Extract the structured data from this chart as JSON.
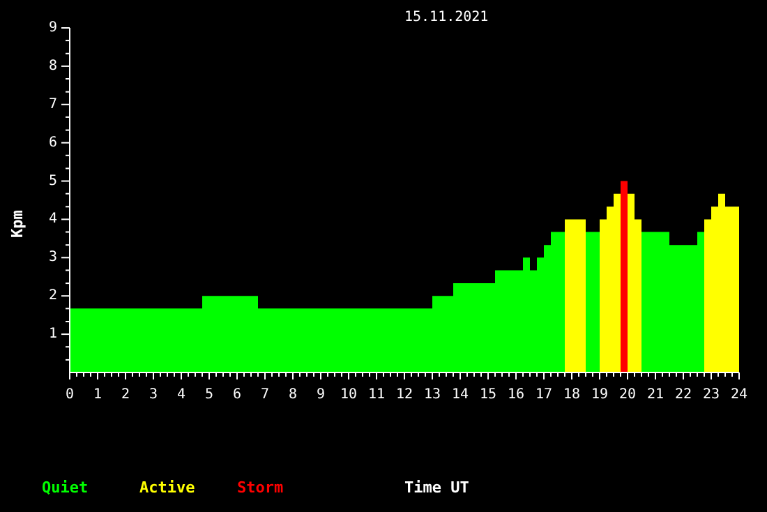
{
  "chart_data": {
    "type": "histogram",
    "title": "15.11.2021",
    "xlabel": "Time UT",
    "ylabel": "Kpm",
    "bins": [
      0,
      4.75,
      6.75,
      13,
      13.75,
      15.25,
      16.25,
      16.5,
      16.75,
      17,
      17.25,
      17.75,
      18.5,
      19,
      19.25,
      19.5,
      19.75,
      20,
      20.25,
      20.5,
      21.5,
      22.5,
      22.75,
      23,
      23.25,
      23.5,
      24
    ],
    "series": [
      {
        "name": "Quiet",
        "color": "#00ff00",
        "values": [
          1.67,
          2,
          1.67,
          2,
          2.33,
          2.67,
          3,
          2.67,
          3,
          3.33,
          3.67,
          null,
          3.67,
          null,
          null,
          null,
          null,
          null,
          null,
          3.67,
          3.33,
          3.67,
          null,
          null,
          null,
          null
        ]
      },
      {
        "name": "Active",
        "color": "#ffff00",
        "values": [
          null,
          null,
          null,
          null,
          null,
          null,
          null,
          null,
          null,
          null,
          null,
          4,
          null,
          4,
          4.33,
          4.67,
          null,
          4.67,
          4,
          null,
          null,
          null,
          4,
          4.33,
          4.67,
          4.33
        ]
      },
      {
        "name": "Storm",
        "color": "#ff0000",
        "values": [
          null,
          null,
          null,
          null,
          null,
          null,
          null,
          null,
          null,
          null,
          null,
          null,
          null,
          null,
          null,
          null,
          5,
          null,
          null,
          null,
          null,
          null,
          null,
          null,
          null,
          null
        ]
      }
    ],
    "xlim": [
      0,
      24
    ],
    "ylim": [
      0,
      9
    ],
    "xticks": [
      0,
      {
        "value": 0.25,
        "label": null
      },
      {
        "value": 0.5,
        "label": null
      },
      {
        "value": 0.75,
        "label": null
      },
      1,
      {
        "value": 1.25,
        "label": null
      },
      {
        "value": 1.5,
        "label": null
      },
      {
        "value": 1.75,
        "label": null
      },
      2,
      {
        "value": 2.25,
        "label": null
      },
      {
        "value": 2.5,
        "label": null
      },
      {
        "value": 2.75,
        "label": null
      },
      3,
      {
        "value": 3.25,
        "label": null
      },
      {
        "value": 3.5,
        "label": null
      },
      {
        "value": 3.75,
        "label": null
      },
      4,
      {
        "value": 4.25,
        "label": null
      },
      {
        "value": 4.5,
        "label": null
      },
      {
        "value": 4.75,
        "label": null
      },
      5,
      {
        "value": 5.25,
        "label": null
      },
      {
        "value": 5.5,
        "label": null
      },
      {
        "value": 5.75,
        "label": null
      },
      6,
      {
        "value": 6.25,
        "label": null
      },
      {
        "value": 6.5,
        "label": null
      },
      {
        "value": 6.75,
        "label": null
      },
      7,
      {
        "value": 7.25,
        "label": null
      },
      {
        "value": 7.5,
        "label": null
      },
      {
        "value": 7.75,
        "label": null
      },
      8,
      {
        "value": 8.25,
        "label": null
      },
      {
        "value": 8.5,
        "label": null
      },
      {
        "value": 8.75,
        "label": null
      },
      9,
      {
        "value": 9.25,
        "label": null
      },
      {
        "value": 9.5,
        "label": null
      },
      {
        "value": 9.75,
        "label": null
      },
      10,
      {
        "value": 10.25,
        "label": null
      },
      {
        "value": 10.5,
        "label": null
      },
      {
        "value": 10.75,
        "label": null
      },
      11,
      {
        "value": 11.25,
        "label": null
      },
      {
        "value": 11.5,
        "label": null
      },
      {
        "value": 11.75,
        "label": null
      },
      12,
      {
        "value": 12.25,
        "label": null
      },
      {
        "value": 12.5,
        "label": null
      },
      {
        "value": 12.75,
        "label": null
      },
      13,
      {
        "value": 13.25,
        "label": null
      },
      {
        "value": 13.5,
        "label": null
      },
      {
        "value": 13.75,
        "label": null
      },
      14,
      {
        "value": 14.25,
        "label": null
      },
      {
        "value": 14.5,
        "label": null
      },
      {
        "value": 14.75,
        "label": null
      },
      15,
      {
        "value": 15.25,
        "label": null
      },
      {
        "value": 15.5,
        "label": null
      },
      {
        "value": 15.75,
        "label": null
      },
      16,
      {
        "value": 16.25,
        "label": null
      },
      {
        "value": 16.5,
        "label": null
      },
      {
        "value": 16.75,
        "label": null
      },
      17,
      {
        "value": 17.25,
        "label": null
      },
      {
        "value": 17.5,
        "label": null
      },
      {
        "value": 17.75,
        "label": null
      },
      18,
      {
        "value": 18.25,
        "label": null
      },
      {
        "value": 18.5,
        "label": null
      },
      {
        "value": 18.75,
        "label": null
      },
      19,
      {
        "value": 19.25,
        "label": null
      },
      {
        "value": 19.5,
        "label": null
      },
      {
        "value": 19.75,
        "label": null
      },
      20,
      {
        "value": 20.25,
        "label": null
      },
      {
        "value": 20.5,
        "label": null
      },
      {
        "value": 20.75,
        "label": null
      },
      21,
      {
        "value": 21.25,
        "label": null
      },
      {
        "value": 21.5,
        "label": null
      },
      {
        "value": 21.75,
        "label": null
      },
      22,
      {
        "value": 22.25,
        "label": null
      },
      {
        "value": 22.5,
        "label": null
      },
      {
        "value": 22.75,
        "label": null
      },
      23,
      {
        "value": 23.25,
        "label": null
      },
      {
        "value": 23.5,
        "label": null
      },
      {
        "value": 23.75,
        "label": null
      },
      24
    ],
    "yticks": [
      {
        "value": 0.33,
        "label": null
      },
      {
        "value": 0.67,
        "label": null
      },
      1,
      {
        "value": 1.33,
        "label": null
      },
      {
        "value": 1.67,
        "label": null
      },
      2,
      {
        "value": 2.33,
        "label": null
      },
      {
        "value": 2.67,
        "label": null
      },
      3,
      {
        "value": 3.33,
        "label": null
      },
      {
        "value": 3.67,
        "label": null
      },
      4,
      {
        "value": 4.33,
        "label": null
      },
      {
        "value": 4.67,
        "label": null
      },
      5,
      {
        "value": 5.33,
        "label": null
      },
      {
        "value": 5.67,
        "label": null
      },
      6,
      {
        "value": 6.33,
        "label": null
      },
      {
        "value": 6.67,
        "label": null
      },
      7,
      {
        "value": 7.33,
        "label": null
      },
      {
        "value": 7.67,
        "label": null
      },
      8,
      {
        "value": 8.33,
        "label": null
      },
      {
        "value": 8.67,
        "label": null
      },
      9
    ],
    "legend": "bottom left"
  }
}
